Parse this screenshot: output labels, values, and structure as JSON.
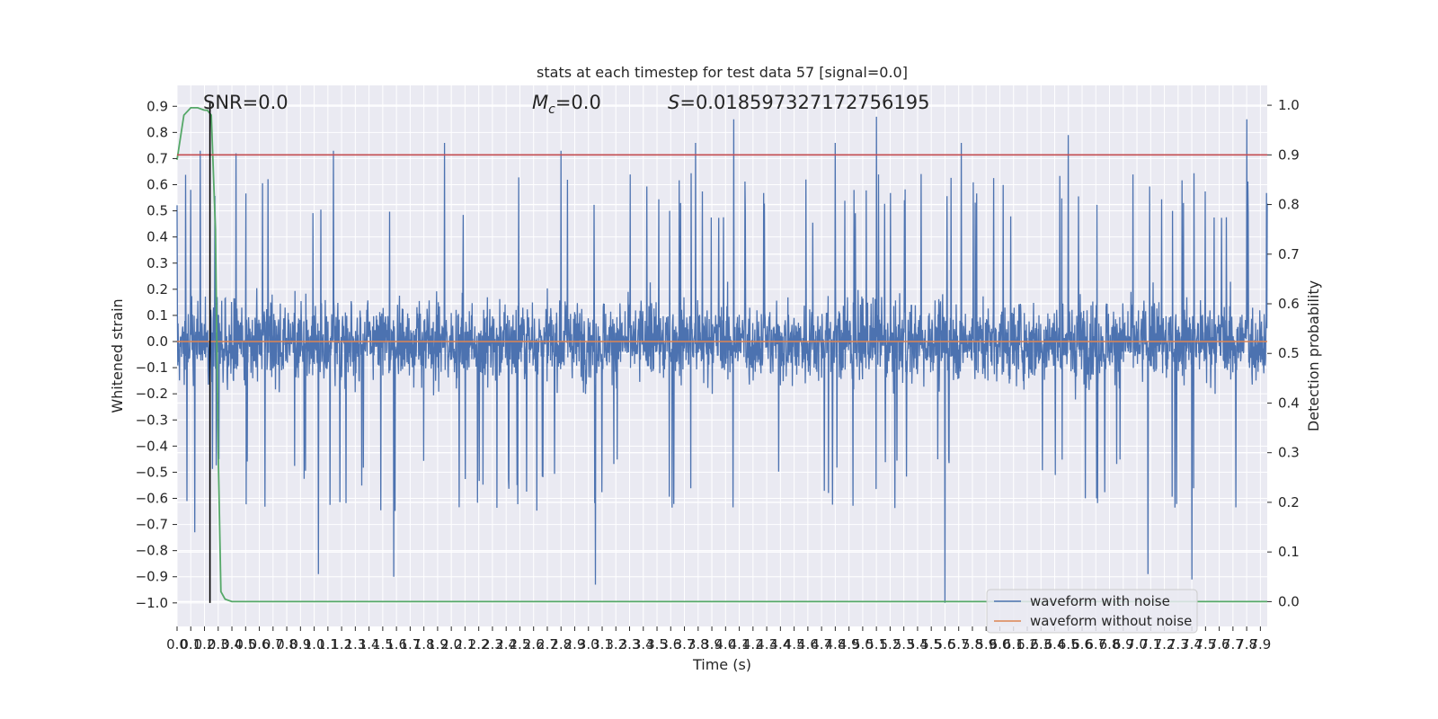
{
  "chart_data": {
    "type": "line",
    "title": "stats at each timestep for test data 57 [signal=0.0]",
    "xlabel": "Time (s)",
    "ylabel": "Whitened strain",
    "y2label": "Detection probability",
    "xlim": [
      0.0,
      7.95
    ],
    "ylim": [
      -1.09,
      0.98
    ],
    "y2lim": [
      -0.05,
      1.04
    ],
    "x_ticks": [
      0.0,
      0.1,
      0.2,
      0.3,
      0.4,
      0.5,
      0.6,
      0.7,
      0.8,
      0.9,
      1.0,
      1.1,
      1.2,
      1.3,
      1.4,
      1.5,
      1.6,
      1.7,
      1.8,
      1.9,
      2.0,
      2.1,
      2.2,
      2.3,
      2.4,
      2.5,
      2.6,
      2.7,
      2.8,
      2.9,
      3.0,
      3.1,
      3.2,
      3.3,
      3.4,
      3.5,
      3.6,
      3.7,
      3.8,
      3.9,
      4.0,
      4.1,
      4.2,
      4.3,
      4.4,
      4.5,
      4.6,
      4.7,
      4.8,
      4.9,
      5.0,
      5.1,
      5.2,
      5.3,
      5.4,
      5.5,
      5.6,
      5.7,
      5.8,
      5.9,
      6.0,
      6.1,
      6.2,
      6.3,
      6.4,
      6.5,
      6.6,
      6.7,
      6.8,
      6.9,
      7.0,
      7.1,
      7.2,
      7.3,
      7.4,
      7.5,
      7.6,
      7.7,
      7.8,
      7.9
    ],
    "x_tick_labels": [
      "0.0",
      "0.1",
      "0.2",
      "0.3",
      "0.4",
      "0.5",
      "0.6",
      "0.7",
      "0.8",
      "0.9",
      "1.0",
      "1.1",
      "1.2",
      "1.3",
      "1.4",
      "1.5",
      "1.6",
      "1.7",
      "1.8",
      "1.9",
      "2.0",
      "2.1",
      "2.2",
      "2.3",
      "2.4",
      "2.5",
      "2.6",
      "2.7",
      "2.8",
      "2.9",
      "3.0",
      "3.1",
      "3.2",
      "3.3",
      "3.4",
      "3.5",
      "3.6",
      "3.7",
      "3.8",
      "3.9",
      "4.0",
      "4.1",
      "4.2",
      "4.3",
      "4.4",
      "4.5",
      "4.6",
      "4.7",
      "4.8",
      "4.9",
      "5.0",
      "5.1",
      "5.2",
      "5.3",
      "5.4",
      "5.5",
      "5.6",
      "5.7",
      "5.8",
      "5.9",
      "6.0",
      "6.1",
      "6.2",
      "6.3",
      "6.4",
      "6.5",
      "6.6",
      "6.7",
      "6.8",
      "6.9",
      "7.0",
      "7.1",
      "7.2",
      "7.3",
      "7.4",
      "7.5",
      "7.6",
      "7.7",
      "7.8",
      "7.9"
    ],
    "y_ticks": [
      -1.0,
      -0.9,
      -0.8,
      -0.7,
      -0.6,
      -0.5,
      -0.4,
      -0.3,
      -0.2,
      -0.1,
      0.0,
      0.1,
      0.2,
      0.3,
      0.4,
      0.5,
      0.6,
      0.7,
      0.8,
      0.9
    ],
    "y_tick_labels": [
      "−1.0",
      "−0.9",
      "−0.8",
      "−0.7",
      "−0.6",
      "−0.5",
      "−0.4",
      "−0.3",
      "−0.2",
      "−0.1",
      "0.0",
      "0.1",
      "0.2",
      "0.3",
      "0.4",
      "0.5",
      "0.6",
      "0.7",
      "0.8",
      "0.9"
    ],
    "y2_ticks": [
      0.0,
      0.1,
      0.2,
      0.3,
      0.4,
      0.5,
      0.6,
      0.7,
      0.8,
      0.9,
      1.0
    ],
    "y2_tick_labels": [
      "0.0",
      "0.1",
      "0.2",
      "0.3",
      "0.4",
      "0.5",
      "0.6",
      "0.7",
      "0.8",
      "0.9",
      "1.0"
    ],
    "grid": true,
    "annotations": {
      "snr": "SNR=0.0",
      "mc_symbol": "M",
      "mc_sub": "c",
      "mc_value": "=0.0",
      "s_symbol": "S",
      "s_value": "=0.018597327172756195"
    },
    "legend": {
      "placement": "lower-right",
      "entries": [
        "waveform with noise",
        "waveform without noise"
      ]
    },
    "series": [
      {
        "name": "waveform with noise",
        "axis": "left",
        "style": "noise",
        "envelope_typical": [
          -0.45,
          0.5
        ],
        "notable_peaks": [
          {
            "x": 0.1,
            "y": 0.58
          },
          {
            "x": 0.17,
            "y": 0.73
          },
          {
            "x": 0.43,
            "y": 0.72
          },
          {
            "x": 1.14,
            "y": 0.73
          },
          {
            "x": 1.95,
            "y": 0.76
          },
          {
            "x": 2.8,
            "y": 0.73
          },
          {
            "x": 3.78,
            "y": 0.76
          },
          {
            "x": 4.06,
            "y": 0.85
          },
          {
            "x": 5.1,
            "y": 0.86
          },
          {
            "x": 4.8,
            "y": 0.76
          },
          {
            "x": 5.72,
            "y": 0.76
          },
          {
            "x": 6.5,
            "y": 0.79
          },
          {
            "x": 7.8,
            "y": 0.85
          }
        ],
        "notable_troughs": [
          {
            "x": 0.13,
            "y": -0.73
          },
          {
            "x": 1.03,
            "y": -0.89
          },
          {
            "x": 1.58,
            "y": -0.9
          },
          {
            "x": 3.05,
            "y": -0.93
          },
          {
            "x": 5.6,
            "y": -1.0
          },
          {
            "x": 7.08,
            "y": -0.89
          },
          {
            "x": 7.4,
            "y": -0.91
          }
        ]
      },
      {
        "name": "waveform without noise",
        "axis": "left",
        "x": [
          0.0,
          7.95
        ],
        "y": [
          0.0,
          0.0
        ]
      },
      {
        "axis": "right",
        "x": [
          0.0,
          0.05,
          0.1,
          0.15,
          0.2,
          0.22,
          0.25,
          0.28,
          0.3,
          0.32,
          0.35,
          0.4,
          7.95
        ],
        "y": [
          0.89,
          0.98,
          0.995,
          0.995,
          0.99,
          0.99,
          0.98,
          0.75,
          0.3,
          0.02,
          0.005,
          0.0,
          0.0
        ]
      },
      {
        "axis": "right",
        "x": [
          0.0,
          7.95
        ],
        "y": [
          0.9,
          0.9
        ]
      },
      {
        "axis": "left",
        "vertical_line_at": 0.24,
        "y": [
          -1.0,
          0.92
        ]
      }
    ],
    "colors": {
      "noise": "#4c72b0",
      "clean": "#dd8452",
      "probability": "#55a868",
      "threshold": "#c44e52",
      "marker": "#000000",
      "background": "#eaeaf2",
      "grid": "#ffffff"
    }
  }
}
